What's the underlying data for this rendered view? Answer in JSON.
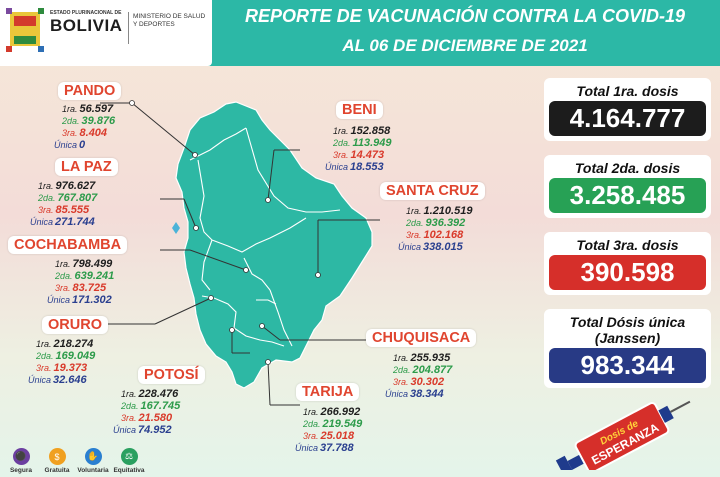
{
  "header": {
    "logo_small": "ESTADO PLURINACIONAL DE",
    "logo_big": "BOLIVIA",
    "ministry": "MINISTERIO DE SALUD Y DEPORTES",
    "title_line1": "REPORTE DE VACUNACIÓN CONTRA LA COVID-19",
    "title_line2": "AL 06 DE DICIEMBRE DE 2021"
  },
  "dose_labels": {
    "d1": "1ra.",
    "d2": "2da.",
    "d3": "3ra.",
    "du": "Única"
  },
  "regions": {
    "pando": {
      "name": "PANDO",
      "d1": "56.597",
      "d2": "39.876",
      "d3": "8.404",
      "du": "0"
    },
    "lapaz": {
      "name": "LA PAZ",
      "d1": "976.627",
      "d2": "767.807",
      "d3": "85.555",
      "du": "271.744"
    },
    "cochabamba": {
      "name": "COCHABAMBA",
      "d1": "798.499",
      "d2": "639.241",
      "d3": "83.725",
      "du": "171.302"
    },
    "oruro": {
      "name": "ORURO",
      "d1": "218.274",
      "d2": "169.049",
      "d3": "19.373",
      "du": "32.646"
    },
    "potosi": {
      "name": "POTOSÍ",
      "d1": "228.476",
      "d2": "167.745",
      "d3": "21.580",
      "du": "74.952"
    },
    "beni": {
      "name": "BENI",
      "d1": "152.858",
      "d2": "113.949",
      "d3": "14.473",
      "du": "18.553"
    },
    "santacruz": {
      "name": "SANTA CRUZ",
      "d1": "1.210.519",
      "d2": "936.392",
      "d3": "102.168",
      "du": "338.015"
    },
    "chuquisaca": {
      "name": "CHUQUISACA",
      "d1": "255.935",
      "d2": "204.877",
      "d3": "30.302",
      "du": "38.344"
    },
    "tarija": {
      "name": "TARIJA",
      "d1": "266.992",
      "d2": "219.549",
      "d3": "25.018",
      "du": "37.788"
    }
  },
  "totals": {
    "d1": {
      "label": "Total 1ra. dosis",
      "value": "4.164.777",
      "color": "#1c1c1c"
    },
    "d2": {
      "label": "Total 2da. dosis",
      "value": "3.258.485",
      "color": "#27a155"
    },
    "d3": {
      "label": "Total 3ra. dosis",
      "value": "390.598",
      "color": "#d62f2a"
    },
    "du": {
      "label": "Total Dósis única (Janssen)",
      "value": "983.344",
      "color": "#283a85"
    }
  },
  "footer_icons": [
    {
      "label": "Segura",
      "icon": "shield-icon",
      "color": "#6c3fa0"
    },
    {
      "label": "Gratuita",
      "icon": "coin-icon",
      "color": "#f0a020"
    },
    {
      "label": "Voluntaria",
      "icon": "hand-icon",
      "color": "#2a7fd0"
    },
    {
      "label": "Equitativa",
      "icon": "balance-icon",
      "color": "#2aa060"
    }
  ],
  "badge": {
    "line1": "Dosis de",
    "line2": "ESPERANZA"
  }
}
